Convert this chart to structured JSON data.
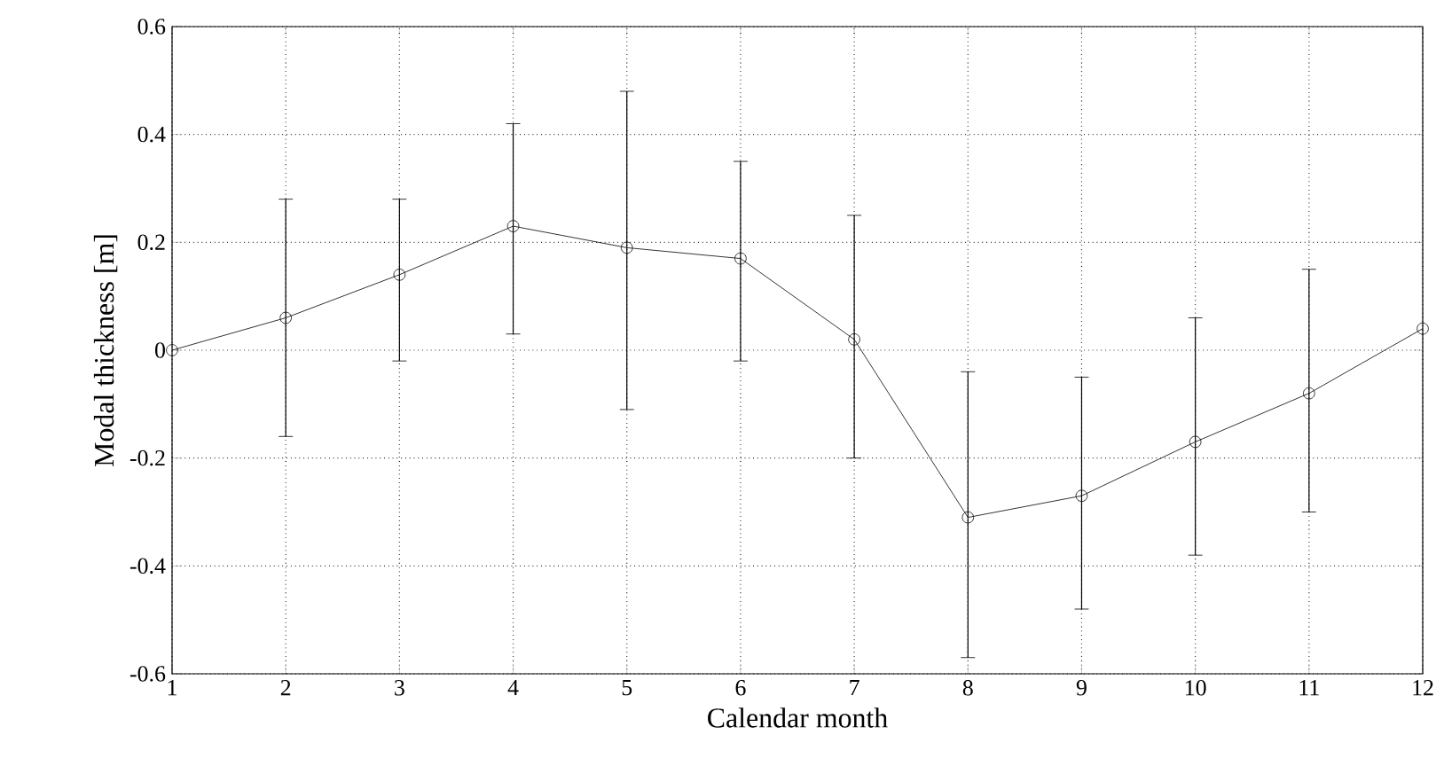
{
  "chart_data": {
    "type": "line",
    "xlabel": "Calendar month",
    "ylabel": "Modal thickness [m]",
    "x": [
      1,
      2,
      3,
      4,
      5,
      6,
      7,
      8,
      9,
      10,
      11,
      12
    ],
    "series": [
      {
        "color": "#000000",
        "values": [
          0.0,
          0.06,
          0.14,
          0.23,
          0.19,
          0.17,
          0.02,
          -0.31,
          -0.27,
          -0.17,
          -0.08,
          0.04
        ],
        "errors": [
          null,
          [
            -0.16,
            0.28
          ],
          [
            -0.02,
            0.28
          ],
          [
            0.03,
            0.42
          ],
          [
            -0.11,
            0.48
          ],
          [
            -0.02,
            0.35
          ],
          [
            -0.2,
            0.25
          ],
          [
            -0.57,
            -0.04
          ],
          [
            -0.48,
            -0.05
          ],
          [
            -0.38,
            0.06
          ],
          [
            -0.3,
            0.15
          ],
          null
        ]
      }
    ],
    "xlim": [
      1,
      12
    ],
    "ylim": [
      -0.6,
      0.6
    ],
    "xticks": [
      1,
      2,
      3,
      4,
      5,
      6,
      7,
      8,
      9,
      10,
      11,
      12
    ],
    "yticks": [
      -0.6,
      -0.4,
      -0.2,
      0,
      0.2,
      0.4,
      0.6
    ],
    "grid": true,
    "marker": "circle",
    "line_style": "solid"
  }
}
